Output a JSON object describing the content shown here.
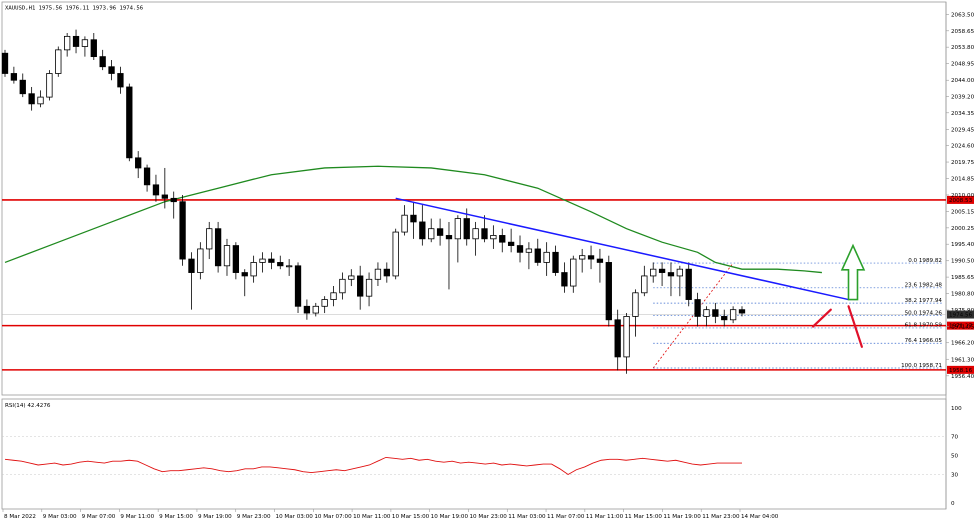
{
  "window": {
    "title": "XAUUSD,H1  1975.56 1976.11 1973.96 1974.56"
  },
  "colors": {
    "bull": "#ffffff",
    "bear": "#000000",
    "ma": "#1f8a1f",
    "trendline": "#1a1aff",
    "level": "#e00000",
    "fib": "#3366cc",
    "rsi": "#e01010",
    "up_arrow": "#2ca02c",
    "down_arrow": "#e0102a"
  },
  "chart_data": [
    {
      "type": "candlestick",
      "symbol": "XAUUSD",
      "timeframe": "H1",
      "ohlc_header": {
        "open": 1975.56,
        "high": 1976.11,
        "low": 1973.96,
        "close": 1974.56
      },
      "ylim": [
        1951.6,
        2066.0
      ],
      "yticks": [
        "2063.50",
        "2058.65",
        "2053.80",
        "2048.95",
        "2044.00",
        "2039.20",
        "2034.35",
        "2029.45",
        "2024.60",
        "2019.75",
        "2014.85",
        "2010.00",
        "2005.15",
        "2000.25",
        "1995.40",
        "1990.50",
        "1985.65",
        "1980.80",
        "1975.90",
        "1971.05",
        "1966.20",
        "1961.30",
        "1956.40"
      ],
      "xticks": [
        "8 Mar 2022",
        "9 Mar 03:00",
        "9 Mar 07:00",
        "9 Mar 11:00",
        "9 Mar 15:00",
        "9 Mar 19:00",
        "9 Mar 23:00",
        "10 Mar 03:00",
        "10 Mar 07:00",
        "10 Mar 11:00",
        "10 Mar 15:00",
        "10 Mar 19:00",
        "10 Mar 23:00",
        "11 Mar 03:00",
        "11 Mar 07:00",
        "11 Mar 11:00",
        "11 Mar 15:00",
        "11 Mar 19:00",
        "11 Mar 23:00",
        "14 Mar 04:00"
      ],
      "candles": [
        [
          2052,
          2053,
          2045,
          2046
        ],
        [
          2046,
          2048,
          2043,
          2044
        ],
        [
          2044,
          2046,
          2039,
          2040
        ],
        [
          2040,
          2042,
          2035,
          2037
        ],
        [
          2037,
          2041,
          2036,
          2039
        ],
        [
          2039,
          2047,
          2038,
          2046
        ],
        [
          2046,
          2054,
          2045,
          2053
        ],
        [
          2053,
          2058,
          2051,
          2057
        ],
        [
          2057,
          2059,
          2052,
          2054
        ],
        [
          2054,
          2057,
          2051,
          2056
        ],
        [
          2056,
          2058,
          2050,
          2051
        ],
        [
          2051,
          2053,
          2047,
          2048
        ],
        [
          2048,
          2050,
          2044,
          2046
        ],
        [
          2046,
          2048,
          2040,
          2042
        ],
        [
          2042,
          2043,
          2020,
          2021
        ],
        [
          2021,
          2023,
          2015,
          2018
        ],
        [
          2018,
          2019,
          2011,
          2013
        ],
        [
          2013,
          2016,
          2008,
          2010
        ],
        [
          2010,
          2018,
          2006,
          2009
        ],
        [
          2009,
          2011,
          2003,
          2008
        ],
        [
          2008,
          2010,
          1989,
          1991
        ],
        [
          1991,
          1993,
          1976,
          1987
        ],
        [
          1987,
          1996,
          1985,
          1994
        ],
        [
          1994,
          2002,
          1991,
          2000
        ],
        [
          2000,
          2002,
          1987,
          1989
        ],
        [
          1989,
          1997,
          1986,
          1995
        ],
        [
          1995,
          1996,
          1985,
          1987
        ],
        [
          1987,
          1988,
          1980,
          1986
        ],
        [
          1986,
          1992,
          1984,
          1990
        ],
        [
          1990,
          1993,
          1987,
          1991
        ],
        [
          1991,
          1993,
          1988,
          1990
        ],
        [
          1990,
          1992,
          1988,
          1989
        ],
        [
          1989,
          1991,
          1986,
          1989
        ],
        [
          1989,
          1990,
          1975,
          1977
        ],
        [
          1977,
          1979,
          1973,
          1975
        ],
        [
          1975,
          1978,
          1974,
          1977
        ],
        [
          1977,
          1980,
          1975,
          1979
        ],
        [
          1979,
          1983,
          1977,
          1981
        ],
        [
          1981,
          1987,
          1979,
          1985
        ],
        [
          1985,
          1988,
          1983,
          1986
        ],
        [
          1986,
          1989,
          1976,
          1980
        ],
        [
          1980,
          1987,
          1977,
          1985
        ],
        [
          1985,
          1990,
          1983,
          1988
        ],
        [
          1988,
          1990,
          1984,
          1986
        ],
        [
          1986,
          2000,
          1985,
          1999
        ],
        [
          1999,
          2007,
          1998,
          2004
        ],
        [
          2004,
          2008,
          1997,
          2002
        ],
        [
          2002,
          2007,
          1995,
          1997
        ],
        [
          1997,
          2003,
          1996,
          2000
        ],
        [
          2000,
          2003,
          1995,
          1998
        ],
        [
          1998,
          2002,
          1982,
          1997
        ],
        [
          1997,
          2004,
          1990,
          2003
        ],
        [
          2003,
          2006,
          1995,
          1997
        ],
        [
          1997,
          2002,
          1992,
          2000
        ],
        [
          2000,
          2004,
          1996,
          1997
        ],
        [
          1997,
          2001,
          1994,
          1998
        ],
        [
          1998,
          2000,
          1993,
          1996
        ],
        [
          1996,
          2000,
          1993,
          1995
        ],
        [
          1995,
          1998,
          1990,
          1993
        ],
        [
          1993,
          1996,
          1988,
          1994
        ],
        [
          1994,
          1997,
          1989,
          1990
        ],
        [
          1990,
          1996,
          1986,
          1993
        ],
        [
          1993,
          1995,
          1986,
          1987
        ],
        [
          1987,
          1990,
          1981,
          1983
        ],
        [
          1983,
          1992,
          1981,
          1991
        ],
        [
          1991,
          1994,
          1987,
          1992
        ],
        [
          1992,
          1995,
          1988,
          1991
        ],
        [
          1991,
          1994,
          1984,
          1990
        ],
        [
          1990,
          1992,
          1971,
          1973
        ],
        [
          1973,
          1976,
          1958,
          1962
        ],
        [
          1962,
          1975,
          1957,
          1974
        ],
        [
          1974,
          1982,
          1968,
          1981
        ],
        [
          1981,
          1989,
          1980,
          1986
        ],
        [
          1986,
          1990,
          1984,
          1988
        ],
        [
          1988,
          1990,
          1983,
          1987
        ],
        [
          1987,
          1990,
          1980,
          1986
        ],
        [
          1986,
          1989,
          1980,
          1988
        ],
        [
          1988,
          1990,
          1977,
          1979
        ],
        [
          1979,
          1981,
          1971,
          1974
        ],
        [
          1974,
          1977,
          1971,
          1976
        ],
        [
          1976,
          1978,
          1972,
          1974
        ],
        [
          1974,
          1976,
          1971,
          1973
        ],
        [
          1973,
          1977,
          1972,
          1976
        ],
        [
          1976,
          1977,
          1974,
          1975
        ]
      ],
      "moving_average": [
        [
          0,
          1990
        ],
        [
          6,
          1996
        ],
        [
          12,
          2002
        ],
        [
          18,
          2008
        ],
        [
          24,
          2012
        ],
        [
          30,
          2016
        ],
        [
          36,
          2018
        ],
        [
          42,
          2018.5
        ],
        [
          48,
          2018
        ],
        [
          54,
          2016
        ],
        [
          60,
          2012
        ],
        [
          66,
          2005
        ],
        [
          70,
          2000
        ],
        [
          74,
          1996
        ],
        [
          78,
          1993
        ],
        [
          80,
          1990
        ],
        [
          83,
          1988
        ],
        [
          87,
          1988
        ],
        [
          90,
          1987.5
        ],
        [
          92,
          1987
        ]
      ],
      "price_levels": [
        {
          "value": 2008.53,
          "label": "2008.53"
        },
        {
          "value": 1971.27,
          "label": "1971.27"
        },
        {
          "value": 1958.16,
          "label": "1958.16"
        }
      ],
      "current_price": {
        "value": 1974.56,
        "label": "1974.56"
      },
      "trendline": {
        "from": [
          44,
          2009
        ],
        "to": [
          95,
          1979
        ]
      },
      "fibonacci": {
        "anchor_low": [
          73,
          1958.7
        ],
        "anchor_high": [
          82,
          1989.8
        ],
        "levels": [
          {
            "value": 1989.82,
            "label": "0.0 1989.82"
          },
          {
            "value": 1982.48,
            "label": "23.6 1982.48"
          },
          {
            "value": 1977.94,
            "label": "38.2 1977.94"
          },
          {
            "value": 1974.26,
            "label": "50.0 1974.26"
          },
          {
            "value": 1970.59,
            "label": "61.8 1970.59"
          },
          {
            "value": 1966.05,
            "label": "76.4 1966.05"
          },
          {
            "value": 1958.71,
            "label": "100.0 1958.71"
          }
        ]
      },
      "annotations": [
        {
          "type": "arrow-up",
          "x": 95.5,
          "y_from": 1979,
          "y_to": 1995
        },
        {
          "type": "stroke",
          "from": [
            91,
            1971
          ],
          "to": [
            93,
            1976
          ]
        },
        {
          "type": "stroke",
          "from": [
            95,
            1977
          ],
          "to": [
            96.5,
            1965
          ]
        }
      ]
    },
    {
      "type": "line",
      "name": "RSI(14)",
      "value_label": "RSI(14) 42.4276",
      "ylim": [
        0,
        100
      ],
      "yticks": [
        "100",
        "70",
        "50",
        "30",
        "0"
      ],
      "values": [
        46,
        45,
        44,
        42,
        40,
        41,
        42,
        40,
        41,
        43,
        44,
        43,
        42,
        44,
        44,
        45,
        44,
        40,
        36,
        33,
        34,
        34,
        35,
        36,
        37,
        36,
        34,
        33,
        34,
        36,
        36,
        38,
        38,
        37,
        36,
        35,
        33,
        32,
        33,
        34,
        35,
        34,
        36,
        38,
        40,
        44,
        48,
        47,
        46,
        47,
        45,
        46,
        44,
        43,
        44,
        42,
        43,
        42,
        41,
        42,
        40,
        41,
        40,
        39,
        40,
        41,
        41,
        36,
        30,
        35,
        38,
        42,
        45,
        46,
        46,
        45,
        46,
        47,
        46,
        45,
        44,
        45,
        43,
        41,
        40,
        41,
        42,
        42,
        42,
        42
      ]
    }
  ]
}
